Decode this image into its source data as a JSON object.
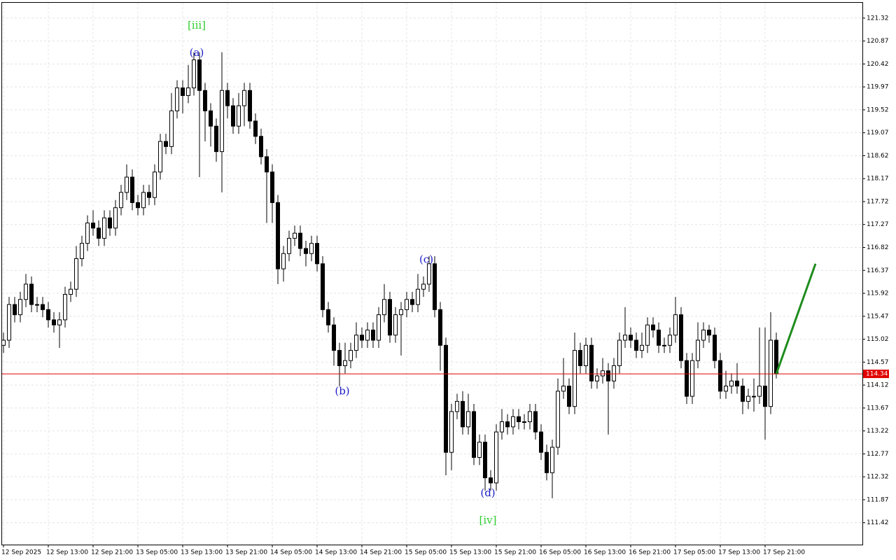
{
  "chart_data": {
    "type": "candlestick",
    "categories": [
      "12 Sep 2025",
      null,
      null,
      null,
      null,
      null,
      null,
      null,
      "12 Sep 13:00",
      null,
      null,
      null,
      null,
      null,
      null,
      null,
      "12 Sep 21:00",
      null,
      null,
      null,
      null,
      null,
      null,
      null,
      "13 Sep 05:00",
      null,
      null,
      null,
      null,
      null,
      null,
      null,
      "13 Sep 13:00",
      null,
      null,
      null,
      null,
      null,
      null,
      null,
      "13 Sep 21:00",
      null,
      null,
      null,
      null,
      null,
      null,
      null,
      "14 Sep 05:00",
      null,
      null,
      null,
      null,
      null,
      null,
      null,
      "14 Sep 13:00",
      null,
      null,
      null,
      null,
      null,
      null,
      null,
      "14 Sep 21:00",
      null,
      null,
      null,
      null,
      null,
      null,
      null,
      "15 Sep 05:00",
      null,
      null,
      null,
      null,
      null,
      null,
      null,
      "15 Sep 13:00",
      null,
      null,
      null,
      null,
      null,
      null,
      null,
      "15 Sep 21:00",
      null,
      null,
      null,
      null,
      null,
      null,
      null,
      "16 Sep 05:00",
      null,
      null,
      null,
      null,
      null,
      null,
      null,
      "16 Sep 13:00",
      null,
      null,
      null,
      null,
      null,
      null,
      null,
      "16 Sep 21:00",
      null,
      null,
      null,
      null,
      null,
      null,
      null,
      "17 Sep 05:00",
      null,
      null,
      null,
      null,
      null,
      null,
      null,
      "17 Sep 13:00",
      null,
      null,
      null,
      null,
      null,
      null,
      null,
      "17 Sep 21:00",
      null,
      null
    ],
    "open": [
      114.9,
      115.0,
      115.7,
      115.5,
      115.8,
      116.1,
      115.7,
      115.7,
      115.6,
      115.4,
      115.3,
      115.4,
      115.9,
      116.0,
      116.6,
      116.9,
      117.3,
      117.2,
      117.0,
      117.4,
      117.2,
      117.6,
      117.9,
      118.2,
      117.7,
      117.6,
      117.9,
      117.8,
      118.3,
      118.9,
      118.8,
      119.5,
      119.95,
      119.8,
      119.95,
      120.5,
      119.9,
      119.5,
      119.2,
      118.7,
      119.9,
      119.6,
      119.2,
      119.6,
      119.9,
      119.3,
      119.0,
      118.6,
      118.3,
      117.7,
      116.4,
      116.7,
      117.0,
      117.1,
      116.8,
      116.7,
      116.9,
      116.5,
      115.6,
      115.3,
      114.8,
      114.5,
      114.6,
      114.8,
      115.1,
      115.0,
      115.2,
      115.0,
      115.5,
      115.8,
      115.1,
      115.5,
      115.6,
      115.8,
      115.7,
      116.0,
      116.1,
      116.5,
      115.6,
      114.9,
      112.8,
      113.6,
      113.8,
      113.3,
      113.6,
      112.7,
      113.0,
      112.3,
      112.2,
      113.2,
      113.4,
      113.3,
      113.5,
      113.4,
      113.4,
      113.6,
      113.2,
      112.8,
      112.4,
      112.9,
      114.0,
      114.1,
      113.7,
      114.8,
      114.5,
      114.9,
      114.2,
      114.3,
      114.4,
      114.2,
      114.5,
      115.0,
      115.1,
      115.0,
      114.8,
      114.9,
      115.3,
      115.2,
      114.9,
      114.9,
      115.1,
      115.5,
      114.6,
      113.9,
      114.6,
      115.0,
      115.2,
      115.1,
      114.6,
      114.0,
      114.1,
      114.2,
      114.1,
      113.8,
      113.9,
      113.9,
      114.1,
      113.7,
      115.0
    ],
    "high": [
      115.15,
      115.85,
      115.85,
      115.95,
      116.3,
      116.25,
      115.85,
      115.85,
      115.75,
      115.55,
      115.55,
      116.05,
      116.15,
      116.85,
      117.05,
      117.45,
      117.55,
      117.35,
      117.55,
      117.55,
      117.75,
      118.05,
      118.45,
      118.35,
      117.85,
      118.05,
      118.05,
      118.45,
      119.05,
      119.05,
      119.85,
      120.1,
      120.1,
      120.4,
      120.65,
      120.65,
      120.05,
      119.65,
      119.35,
      120.65,
      120.05,
      119.75,
      119.85,
      120.05,
      120.05,
      119.45,
      119.15,
      118.75,
      118.45,
      117.85,
      116.85,
      117.15,
      117.25,
      117.25,
      116.95,
      117.05,
      117.05,
      116.65,
      115.75,
      115.45,
      114.95,
      114.95,
      114.95,
      115.35,
      115.25,
      115.35,
      115.35,
      115.65,
      116.1,
      115.95,
      115.65,
      115.75,
      115.95,
      115.95,
      116.3,
      116.25,
      116.65,
      116.65,
      115.75,
      115.05,
      113.75,
      113.95,
      114.0,
      113.95,
      113.75,
      113.15,
      113.15,
      112.45,
      113.35,
      113.65,
      113.55,
      113.65,
      113.65,
      113.55,
      113.75,
      113.75,
      113.35,
      112.95,
      113.05,
      114.25,
      114.65,
      114.25,
      115.15,
      114.95,
      115.05,
      115.05,
      114.45,
      114.65,
      114.55,
      114.65,
      115.15,
      115.65,
      115.25,
      115.15,
      115.15,
      115.45,
      115.45,
      115.35,
      115.05,
      115.25,
      115.85,
      115.65,
      114.75,
      114.75,
      115.35,
      115.35,
      115.3,
      115.25,
      114.75,
      114.4,
      114.35,
      114.55,
      114.25,
      114.05,
      114.25,
      115.25,
      115.25,
      115.55,
      115.15
    ],
    "low": [
      114.75,
      114.85,
      115.35,
      115.35,
      115.65,
      115.55,
      115.55,
      115.45,
      115.25,
      115.15,
      114.85,
      115.25,
      115.75,
      115.85,
      116.45,
      116.75,
      117.05,
      116.85,
      116.85,
      117.05,
      117.05,
      117.45,
      117.75,
      117.55,
      117.45,
      117.45,
      117.65,
      117.65,
      118.15,
      118.65,
      118.65,
      119.35,
      119.45,
      119.65,
      119.8,
      118.2,
      118.9,
      118.8,
      118.5,
      117.9,
      119.35,
      119.05,
      119.05,
      119.2,
      119.15,
      118.85,
      118.45,
      117.3,
      117.3,
      116.1,
      116.15,
      116.55,
      116.85,
      116.65,
      116.45,
      116.55,
      116.35,
      115.45,
      115.15,
      114.5,
      114.1,
      114.35,
      114.45,
      114.65,
      114.85,
      114.85,
      114.85,
      114.85,
      115.35,
      114.95,
      114.95,
      114.7,
      115.45,
      115.55,
      115.55,
      115.85,
      115.95,
      115.45,
      114.4,
      112.35,
      112.45,
      113.45,
      113.15,
      113.15,
      112.55,
      112.55,
      112.05,
      112.05,
      112.05,
      113.05,
      113.15,
      113.15,
      113.25,
      113.25,
      113.25,
      113.05,
      112.65,
      112.25,
      111.9,
      112.75,
      113.85,
      113.55,
      113.55,
      114.35,
      114.35,
      114.05,
      114.05,
      114.15,
      113.15,
      114.05,
      114.35,
      114.85,
      114.85,
      114.65,
      114.65,
      114.75,
      115.05,
      114.75,
      114.75,
      114.75,
      114.95,
      114.45,
      113.75,
      113.75,
      114.45,
      114.85,
      114.95,
      114.45,
      113.85,
      113.85,
      113.95,
      113.95,
      113.55,
      113.65,
      113.6,
      113.75,
      113.05,
      113.55,
      114.25
    ],
    "close": [
      115.0,
      115.7,
      115.5,
      115.8,
      116.1,
      115.7,
      115.7,
      115.6,
      115.4,
      115.3,
      115.4,
      115.9,
      116.0,
      116.6,
      116.9,
      117.3,
      117.2,
      117.0,
      117.4,
      117.2,
      117.6,
      117.9,
      118.2,
      117.7,
      117.6,
      117.9,
      117.8,
      118.3,
      118.9,
      118.8,
      119.5,
      119.95,
      119.8,
      119.95,
      120.5,
      119.9,
      119.5,
      119.2,
      118.7,
      119.9,
      119.6,
      119.2,
      119.6,
      119.9,
      119.3,
      119.0,
      118.6,
      118.3,
      117.7,
      116.4,
      116.7,
      117.0,
      117.1,
      116.8,
      116.7,
      116.9,
      116.5,
      115.6,
      115.3,
      114.8,
      114.5,
      114.6,
      114.8,
      115.1,
      115.0,
      115.2,
      115.0,
      115.5,
      115.8,
      115.1,
      115.5,
      115.6,
      115.8,
      115.7,
      116.0,
      116.1,
      116.5,
      115.6,
      114.9,
      112.8,
      113.6,
      113.8,
      113.3,
      113.6,
      112.7,
      113.0,
      112.3,
      112.2,
      113.2,
      113.4,
      113.3,
      113.5,
      113.4,
      113.4,
      113.6,
      113.2,
      112.8,
      112.4,
      112.9,
      114.0,
      114.1,
      113.7,
      114.8,
      114.5,
      114.9,
      114.2,
      114.3,
      114.4,
      114.2,
      114.5,
      115.0,
      115.1,
      115.0,
      114.8,
      114.9,
      115.3,
      115.2,
      114.9,
      114.9,
      115.1,
      115.5,
      114.6,
      113.9,
      114.6,
      115.0,
      115.2,
      115.1,
      114.6,
      114.0,
      114.1,
      114.2,
      114.1,
      113.8,
      113.9,
      113.9,
      114.1,
      113.7,
      115.0,
      114.34
    ],
    "bull_color": "#ffffff",
    "bear_color": "#000000",
    "ylim": [
      110.99,
      121.62
    ],
    "yticks": [
      111.42,
      111.87,
      112.32,
      112.77,
      113.22,
      113.67,
      114.12,
      114.57,
      115.02,
      115.47,
      115.92,
      116.37,
      116.82,
      117.27,
      117.72,
      118.17,
      118.62,
      119.07,
      119.52,
      119.97,
      120.42,
      120.87,
      121.32
    ],
    "grid": true,
    "current_price": 114.34,
    "current_price_label": "114.34",
    "price_line_color": "#e00000",
    "annotations": [
      {
        "text": "[iii]",
        "index": 34,
        "price": 121.17,
        "color": "#32cd32"
      },
      {
        "text": "(a)",
        "index": 34,
        "price": 120.63,
        "color": "#1c1cc8"
      },
      {
        "text": "(b)",
        "index": 60,
        "price": 113.99,
        "color": "#1c1cc8"
      },
      {
        "text": "(c)",
        "index": 75,
        "price": 116.57,
        "color": "#1c1cc8"
      },
      {
        "text": "(d)",
        "index": 86,
        "price": 111.99,
        "color": "#1c1cc8"
      },
      {
        "text": "[iv]",
        "index": 86,
        "price": 111.46,
        "color": "#32cd32"
      }
    ],
    "forecast": {
      "color": "#1e8c1e",
      "x": [
        138,
        145
      ],
      "values": [
        114.34,
        116.5
      ]
    }
  }
}
